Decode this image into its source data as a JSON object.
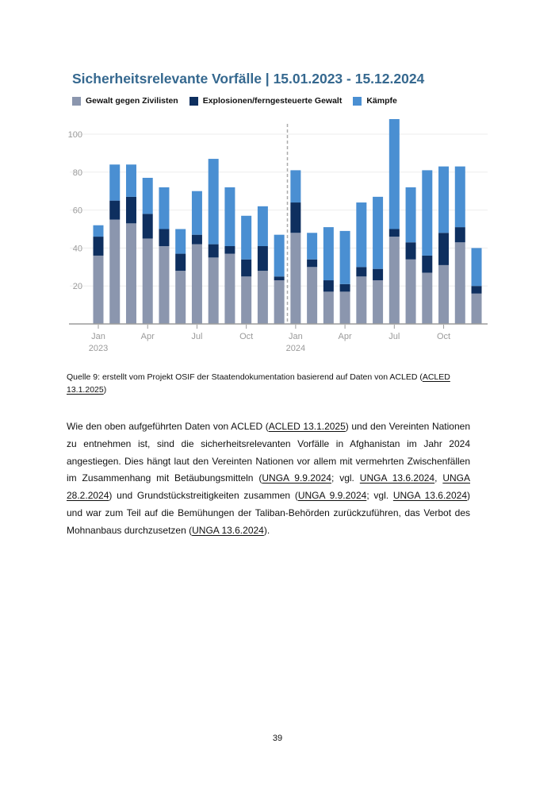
{
  "title": "Sicherheitsrelevante Vorfälle | 15.01.2023 - 15.12.2024",
  "legend": [
    {
      "name": "violence-against-civilians",
      "label": "Gewalt gegen Zivilisten",
      "color": "#8b96ae"
    },
    {
      "name": "explosions-remote-violence",
      "label": "Explosionen/ferngesteuerte Gewalt",
      "color": "#0e2f5f"
    },
    {
      "name": "battles",
      "label": "Kämpfe",
      "color": "#4a8fd2"
    }
  ],
  "chart_data": {
    "type": "bar",
    "stacked": true,
    "title": "Sicherheitsrelevante Vorfälle | 15.01.2023 - 15.12.2024",
    "xlabel": "",
    "ylabel": "",
    "ylim": [
      0,
      110
    ],
    "y_ticks": [
      20,
      40,
      60,
      80,
      100
    ],
    "grid": true,
    "legend_position": "top",
    "categories": [
      "Jan 2023",
      "Feb 2023",
      "Mar 2023",
      "Apr 2023",
      "May 2023",
      "Jun 2023",
      "Jul 2023",
      "Aug 2023",
      "Sep 2023",
      "Oct 2023",
      "Nov 2023",
      "Dec 2023",
      "Jan 2024",
      "Feb 2024",
      "Mar 2024",
      "Apr 2024",
      "May 2024",
      "Jun 2024",
      "Jul 2024",
      "Aug 2024",
      "Sep 2024",
      "Oct 2024",
      "Nov 2024",
      "Dec 2024"
    ],
    "series": [
      {
        "name": "Gewalt gegen Zivilisten",
        "color": "#8b96ae",
        "values": [
          36,
          55,
          53,
          45,
          41,
          28,
          42,
          35,
          37,
          25,
          28,
          23,
          48,
          30,
          17,
          17,
          25,
          23,
          46,
          34,
          27,
          31,
          43,
          16
        ]
      },
      {
        "name": "Explosionen/ferngesteuerte Gewalt",
        "color": "#0e2f5f",
        "values": [
          10,
          10,
          14,
          13,
          9,
          9,
          5,
          7,
          4,
          9,
          13,
          2,
          16,
          4,
          6,
          4,
          5,
          6,
          4,
          9,
          9,
          17,
          8,
          4
        ]
      },
      {
        "name": "Kämpfe",
        "color": "#4a8fd2",
        "values": [
          6,
          19,
          17,
          19,
          22,
          13,
          23,
          45,
          31,
          23,
          21,
          22,
          17,
          14,
          28,
          28,
          34,
          38,
          58,
          29,
          45,
          35,
          32,
          20
        ]
      }
    ],
    "x_tick_labels": [
      {
        "index": 0,
        "line1": "Jan",
        "line2": "2023"
      },
      {
        "index": 3,
        "line1": "Apr"
      },
      {
        "index": 6,
        "line1": "Jul"
      },
      {
        "index": 9,
        "line1": "Oct"
      },
      {
        "index": 12,
        "line1": "Jan",
        "line2": "2024"
      },
      {
        "index": 15,
        "line1": "Apr"
      },
      {
        "index": 18,
        "line1": "Jul"
      },
      {
        "index": 21,
        "line1": "Oct"
      }
    ],
    "separator_after_index": 11
  },
  "colors": {
    "title": "#35688f",
    "axis_text": "#9a9a9a",
    "grid_line": "#ededed",
    "axis_line": "#9b9b9b",
    "separator": "#ababab"
  },
  "source": {
    "segments": [
      {
        "text": "Quelle 9: erstellt vom Projekt OSIF der Staatendokumentation basierend auf Daten von ACLED ("
      },
      {
        "text": "ACLED 13.1.2025",
        "link": true
      },
      {
        "text": ")"
      }
    ]
  },
  "paragraph": {
    "segments": [
      {
        "text": "Wie den oben aufgeführten Daten von ACLED ("
      },
      {
        "text": "ACLED 13.1.2025",
        "link": true
      },
      {
        "text": ") und den Vereinten Nationen zu entnehmen ist, sind die sicherheitsrelevanten Vorfälle in Afghanistan im Jahr 2024 angestiegen. Dies hängt laut den Vereinten Nationen vor allem mit vermehrten Zwischenfällen im Zusammenhang mit Betäubungsmitteln ("
      },
      {
        "text": "UNGA 9.9.2024",
        "link": true
      },
      {
        "text": "; vgl. "
      },
      {
        "text": "UNGA 13.6.2024",
        "link": true
      },
      {
        "text": ", "
      },
      {
        "text": "UNGA 28.2.2024",
        "link": true
      },
      {
        "text": ") und Grundstückstreitigkeiten zusammen ("
      },
      {
        "text": "UNGA 9.9.2024",
        "link": true
      },
      {
        "text": "; vgl. "
      },
      {
        "text": "UNGA 13.6.2024",
        "link": true
      },
      {
        "text": ") und war zum Teil auf die Bemühungen der Taliban-Behörden zurückzuführen, das Verbot des Mohnanbaus durchzusetzen ("
      },
      {
        "text": "UNGA 13.6.2024",
        "link": true
      },
      {
        "text": ")."
      }
    ]
  },
  "page": {
    "number": "39"
  }
}
